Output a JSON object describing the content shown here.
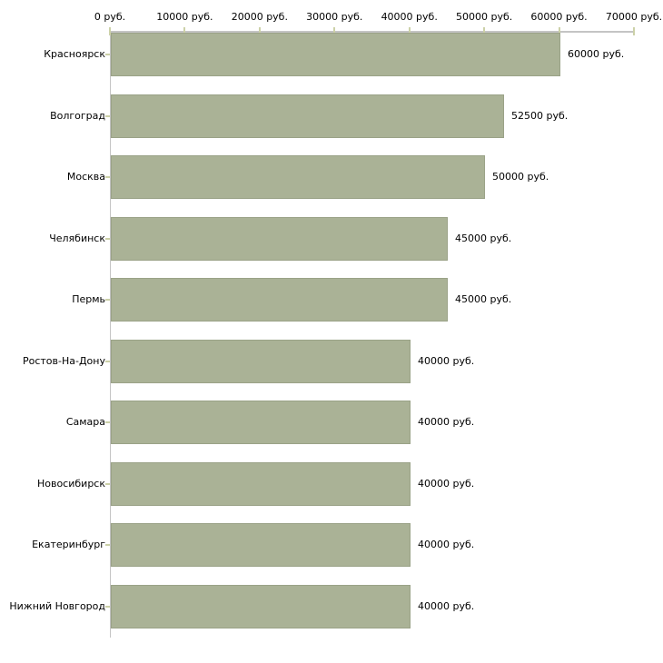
{
  "chart_data": {
    "type": "bar",
    "orientation": "horizontal",
    "title": "",
    "xlabel": "",
    "ylabel": "",
    "unit": "руб.",
    "categories": [
      "Красноярск",
      "Волгоград",
      "Москва",
      "Челябинск",
      "Пермь",
      "Ростов-На-Дону",
      "Самара",
      "Новосибирск",
      "Екатеринбург",
      "Нижний Новгород"
    ],
    "values": [
      60000,
      52500,
      50000,
      45000,
      45000,
      40000,
      40000,
      40000,
      40000,
      40000
    ],
    "value_labels": [
      "60000 руб.",
      "52500 руб.",
      "50000 руб.",
      "45000 руб.",
      "45000 руб.",
      "40000 руб.",
      "40000 руб.",
      "40000 руб.",
      "40000 руб.",
      "40000 руб."
    ],
    "x_tick_values": [
      0,
      10000,
      20000,
      30000,
      40000,
      50000,
      60000,
      70000
    ],
    "x_ticks": [
      "0 руб.",
      "10000 руб.",
      "20000 руб.",
      "30000 руб.",
      "40000 руб.",
      "50000 руб.",
      "60000 руб.",
      "70000 руб."
    ],
    "xlim": [
      0,
      70000
    ],
    "grid": false,
    "legend": false,
    "colors": {
      "bar": "#aab296",
      "bar_border": "#9aa287",
      "axis_line": "#c4c4c4",
      "tick": "#ccd1a8",
      "text": "#000000",
      "background": "#ffffff"
    }
  }
}
